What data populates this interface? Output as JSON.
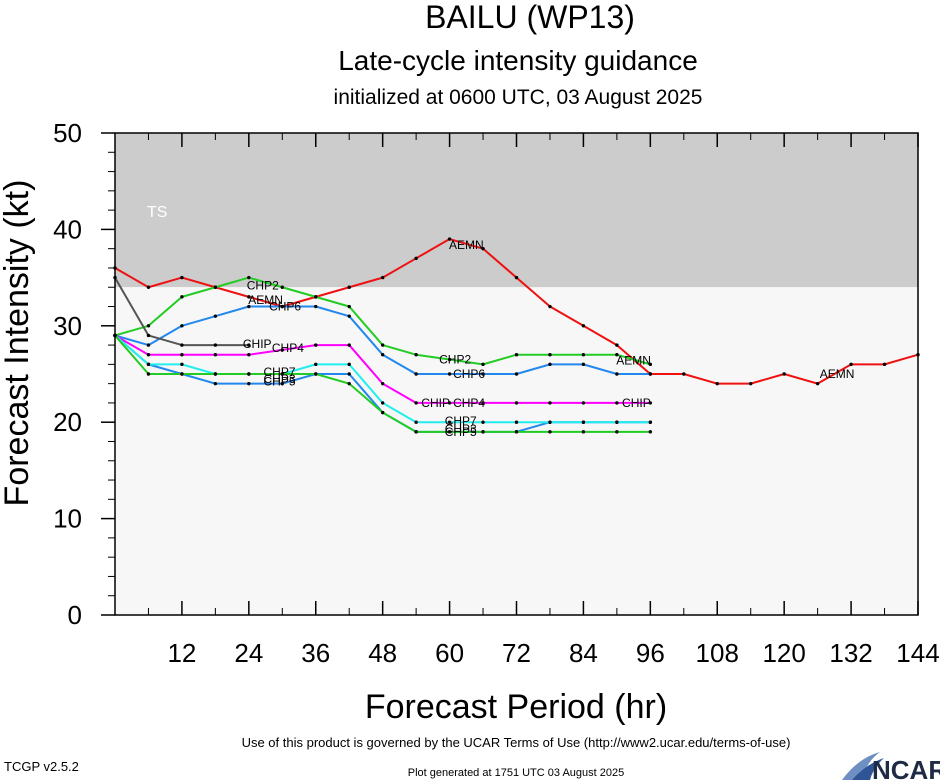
{
  "chart_data": {
    "type": "line",
    "title": "BAILU (WP13)",
    "subtitle": "Late-cycle intensity guidance",
    "initialized": "initialized at 0600 UTC, 03 August 2025",
    "xlabel": "Forecast Period (hr)",
    "ylabel": "Forecast Intensity (kt)",
    "xlim": [
      0,
      144
    ],
    "ylim": [
      0,
      50
    ],
    "xticks": [
      12,
      24,
      36,
      48,
      60,
      72,
      84,
      96,
      108,
      120,
      132,
      144
    ],
    "yticks": [
      0,
      10,
      20,
      30,
      40,
      50
    ],
    "bands": [
      {
        "label": "TS",
        "from": 34,
        "to": 50,
        "color": "#cccccc"
      },
      {
        "label": "",
        "from": 0,
        "to": 34,
        "color": "#f7f7f7"
      }
    ],
    "series": [
      {
        "name": "AEMN",
        "color": "#ee1111",
        "x": [
          0,
          6,
          12,
          18,
          24,
          30,
          36,
          42,
          48,
          54,
          60,
          66,
          72,
          78,
          84,
          90,
          96,
          102,
          108,
          114,
          120,
          126,
          132,
          138,
          144
        ],
        "y": [
          36,
          34,
          35,
          34,
          33,
          32,
          33,
          34,
          35,
          37,
          39,
          38,
          35,
          32,
          30,
          28,
          25,
          25,
          24,
          24,
          25,
          24,
          26,
          26,
          27
        ],
        "labels": [
          {
            "x": 27,
            "y": 32.7
          },
          {
            "x": 63,
            "y": 38.4
          },
          {
            "x": 93,
            "y": 26.4
          },
          {
            "x": 129.5,
            "y": 25
          }
        ]
      },
      {
        "name": "CHP2",
        "color": "#22cc22",
        "x": [
          0,
          6,
          12,
          18,
          24,
          30,
          36,
          42,
          48,
          54,
          60,
          66,
          72,
          78,
          84,
          90,
          96
        ],
        "y": [
          29,
          30,
          33,
          34,
          35,
          34,
          33,
          32,
          28,
          27,
          26.5,
          26,
          27,
          27,
          27,
          27,
          26
        ],
        "labels": [
          {
            "x": 26.5,
            "y": 34.2
          },
          {
            "x": 61,
            "y": 26.5
          }
        ]
      },
      {
        "name": "CHP6",
        "color": "#2288ee",
        "x": [
          0,
          6,
          12,
          18,
          24,
          30,
          36,
          42,
          48,
          54,
          60,
          66,
          72,
          78,
          84,
          90,
          96
        ],
        "y": [
          29,
          28,
          30,
          31,
          32,
          32,
          32,
          31,
          27,
          25,
          25,
          25,
          25,
          26,
          26,
          25,
          25
        ],
        "labels": [
          {
            "x": 30.5,
            "y": 32
          },
          {
            "x": 63.5,
            "y": 25
          }
        ]
      },
      {
        "name": "CHIP",
        "color": "#555555",
        "x": [
          0,
          6,
          12,
          18,
          24
        ],
        "y": [
          35,
          29,
          28,
          28,
          28
        ],
        "labels": [
          {
            "x": 25.5,
            "y": 28.1
          }
        ]
      },
      {
        "name": "CHIP",
        "color": "#ff00ff",
        "x": [
          0,
          6,
          12,
          18,
          24,
          30,
          36,
          42,
          48,
          54,
          60,
          66,
          72,
          78,
          84,
          90,
          96
        ],
        "y": [
          29,
          27,
          27,
          27,
          27,
          27.5,
          28,
          28,
          24,
          22,
          22,
          22,
          22,
          22,
          22,
          22,
          22
        ],
        "labels": [
          {
            "x": 57.5,
            "y": 22
          },
          {
            "x": 93.5,
            "y": 22
          }
        ]
      },
      {
        "name": "CHP4",
        "color": "#2288ee",
        "x": [
          0,
          6,
          12,
          18,
          24,
          30,
          36,
          42,
          48,
          54,
          60,
          66,
          72,
          78,
          84,
          90,
          96
        ],
        "y": [
          29,
          26,
          25,
          24,
          24,
          24,
          25,
          25,
          21,
          19,
          19,
          19,
          19,
          20,
          20,
          20,
          20
        ],
        "labels": [
          {
            "x": 31,
            "y": 27.7
          },
          {
            "x": 63.5,
            "y": 22
          }
        ]
      },
      {
        "name": "CHP7",
        "color": "#22eeee",
        "x": [
          0,
          6,
          12,
          18,
          24,
          30,
          36,
          42,
          48,
          54,
          60,
          66,
          72,
          78,
          84,
          90,
          96
        ],
        "y": [
          29,
          26,
          26,
          25,
          25,
          25,
          26,
          26,
          22,
          20,
          20,
          20,
          20,
          20,
          20,
          20,
          20
        ],
        "labels": [
          {
            "x": 29.5,
            "y": 25.2
          },
          {
            "x": 62,
            "y": 20.1
          }
        ]
      },
      {
        "name": "CHP5",
        "color": "#22cc22",
        "x": [
          0,
          6,
          12,
          18,
          24,
          30,
          36,
          42,
          48,
          54,
          60,
          66,
          72,
          78,
          84,
          90,
          96
        ],
        "y": [
          29,
          25,
          25,
          25,
          25,
          25,
          25,
          24,
          21,
          19,
          19,
          19,
          19,
          19,
          19,
          19,
          19
        ],
        "labels": [
          {
            "x": 29.5,
            "y": 24.2
          },
          {
            "x": 62,
            "y": 19
          }
        ]
      },
      {
        "name": "CHP3",
        "color": "#2288ee",
        "x": [
          0
        ],
        "y": [
          29
        ],
        "labels": [
          {
            "x": 29.5,
            "y": 24.5
          },
          {
            "x": 62,
            "y": 19.3
          }
        ]
      }
    ]
  },
  "footer": {
    "terms": "Use of this product is governed by the UCAR Terms of Use (http://www2.ucar.edu/terms-of-use)",
    "version": "TCGP v2.5.2",
    "generated": "Plot generated at 1751 UTC   03 August 2025",
    "logo": "NCAR"
  }
}
